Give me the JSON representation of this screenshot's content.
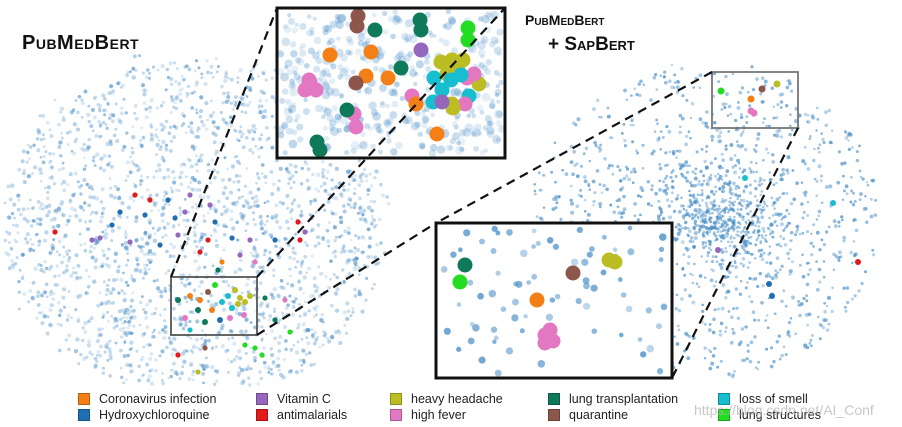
{
  "titles": {
    "left": "PubMedBert",
    "right_line1": "PubMedBert",
    "right_line2": "+ SapBert"
  },
  "legend": {
    "items": [
      {
        "label": "Coronavirus infection",
        "color": "#f57f17"
      },
      {
        "label": "Hydroxychloroquine",
        "color": "#1f6fb0"
      },
      {
        "label": "Vitamin C",
        "color": "#9467bd"
      },
      {
        "label": "antimalarials",
        "color": "#e31a1c"
      },
      {
        "label": "heavy headache",
        "color": "#bcbd22"
      },
      {
        "label": "high fever",
        "color": "#e377c2"
      },
      {
        "label": "lung transplantation",
        "color": "#0f7a5a"
      },
      {
        "label": "quarantine",
        "color": "#8c564b"
      },
      {
        "label": "loss of smell",
        "color": "#17becf"
      },
      {
        "label": "lung structures",
        "color": "#22dd22"
      }
    ]
  },
  "background_point_color": "#4a8fc7",
  "watermark": "https://blog.csdn.net/AI_Conf"
}
